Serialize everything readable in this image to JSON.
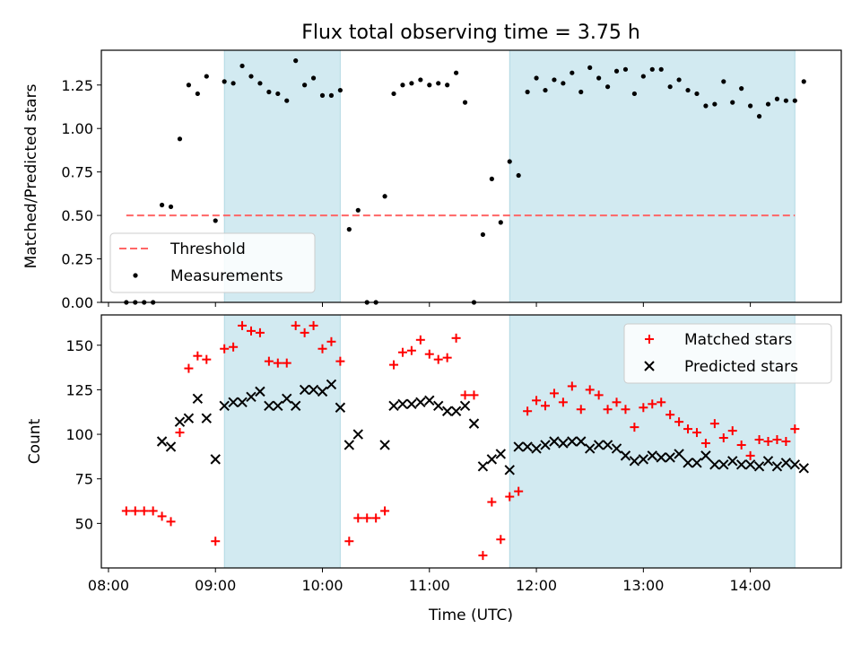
{
  "figure": {
    "title": "Flux total observing time = 3.75 h",
    "xlabel": "Time (UTC)"
  },
  "colors": {
    "shade": "#add8e6",
    "threshold": "#ff6666",
    "matched": "#ff0000",
    "predicted": "#000000",
    "measurement": "#000000"
  },
  "chart_data": [
    {
      "type": "scatter",
      "ylabel": "Matched/Predicted stars",
      "xlim": [
        "07:56",
        "14:51"
      ],
      "ylim": [
        0.0,
        1.45
      ],
      "xticks": [
        "08:00",
        "09:00",
        "10:00",
        "11:00",
        "12:00",
        "13:00",
        "14:00"
      ],
      "yticks": [
        "0.00",
        "0.25",
        "0.50",
        "0.75",
        "1.00",
        "1.25"
      ],
      "legend": {
        "placement": "lower-left",
        "entries": [
          "Threshold",
          "Measurements"
        ]
      },
      "shaded_spans": [
        [
          "09:05",
          "10:10"
        ],
        [
          "11:45",
          "14:25"
        ]
      ],
      "threshold": {
        "name": "Threshold",
        "y": 0.5,
        "x": [
          "08:10",
          "14:25"
        ]
      },
      "series": [
        {
          "name": "Measurements",
          "marker": "dot",
          "points": [
            [
              "08:10",
              0.0
            ],
            [
              "08:15",
              0.0
            ],
            [
              "08:20",
              0.0
            ],
            [
              "08:25",
              0.0
            ],
            [
              "08:30",
              0.56
            ],
            [
              "08:35",
              0.55
            ],
            [
              "08:40",
              0.94
            ],
            [
              "08:45",
              1.25
            ],
            [
              "08:50",
              1.2
            ],
            [
              "08:55",
              1.3
            ],
            [
              "09:00",
              0.47
            ],
            [
              "09:05",
              1.27
            ],
            [
              "09:10",
              1.26
            ],
            [
              "09:15",
              1.36
            ],
            [
              "09:20",
              1.3
            ],
            [
              "09:25",
              1.26
            ],
            [
              "09:30",
              1.21
            ],
            [
              "09:35",
              1.2
            ],
            [
              "09:40",
              1.16
            ],
            [
              "09:45",
              1.39
            ],
            [
              "09:50",
              1.25
            ],
            [
              "09:55",
              1.29
            ],
            [
              "10:00",
              1.19
            ],
            [
              "10:05",
              1.19
            ],
            [
              "10:10",
              1.22
            ],
            [
              "10:15",
              0.42
            ],
            [
              "10:20",
              0.53
            ],
            [
              "10:25",
              0.0
            ],
            [
              "10:30",
              0.0
            ],
            [
              "10:35",
              0.61
            ],
            [
              "10:40",
              1.2
            ],
            [
              "10:45",
              1.25
            ],
            [
              "10:50",
              1.26
            ],
            [
              "10:55",
              1.28
            ],
            [
              "11:00",
              1.25
            ],
            [
              "11:05",
              1.26
            ],
            [
              "11:10",
              1.25
            ],
            [
              "11:15",
              1.32
            ],
            [
              "11:20",
              1.15
            ],
            [
              "11:25",
              0.0
            ],
            [
              "11:30",
              0.39
            ],
            [
              "11:35",
              0.71
            ],
            [
              "11:40",
              0.46
            ],
            [
              "11:45",
              0.81
            ],
            [
              "11:50",
              0.73
            ],
            [
              "11:55",
              1.21
            ],
            [
              "12:00",
              1.29
            ],
            [
              "12:05",
              1.22
            ],
            [
              "12:10",
              1.28
            ],
            [
              "12:15",
              1.26
            ],
            [
              "12:20",
              1.32
            ],
            [
              "12:25",
              1.21
            ],
            [
              "12:30",
              1.35
            ],
            [
              "12:35",
              1.29
            ],
            [
              "12:40",
              1.24
            ],
            [
              "12:45",
              1.33
            ],
            [
              "12:50",
              1.34
            ],
            [
              "12:55",
              1.2
            ],
            [
              "13:00",
              1.3
            ],
            [
              "13:05",
              1.34
            ],
            [
              "13:10",
              1.34
            ],
            [
              "13:15",
              1.24
            ],
            [
              "13:20",
              1.28
            ],
            [
              "13:25",
              1.22
            ],
            [
              "13:30",
              1.2
            ],
            [
              "13:35",
              1.13
            ],
            [
              "13:40",
              1.14
            ],
            [
              "13:45",
              1.27
            ],
            [
              "13:50",
              1.15
            ],
            [
              "13:55",
              1.23
            ],
            [
              "14:00",
              1.13
            ],
            [
              "14:05",
              1.07
            ],
            [
              "14:10",
              1.14
            ],
            [
              "14:15",
              1.17
            ],
            [
              "14:20",
              1.16
            ],
            [
              "14:25",
              1.16
            ],
            [
              "14:30",
              1.27
            ]
          ]
        }
      ]
    },
    {
      "type": "scatter",
      "ylabel": "Count",
      "xlim": [
        "07:56",
        "14:51"
      ],
      "ylim": [
        25,
        167
      ],
      "xticks": [
        "08:00",
        "09:00",
        "10:00",
        "11:00",
        "12:00",
        "13:00",
        "14:00"
      ],
      "yticks": [
        "50",
        "75",
        "100",
        "125",
        "150"
      ],
      "legend": {
        "placement": "upper-right",
        "entries": [
          "Matched stars",
          "Predicted stars"
        ]
      },
      "shaded_spans": [
        [
          "09:05",
          "10:10"
        ],
        [
          "11:45",
          "14:25"
        ]
      ],
      "series": [
        {
          "name": "Matched stars",
          "marker": "plus",
          "points": [
            [
              "08:10",
              57
            ],
            [
              "08:15",
              57
            ],
            [
              "08:20",
              57
            ],
            [
              "08:25",
              57
            ],
            [
              "08:30",
              54
            ],
            [
              "08:35",
              51
            ],
            [
              "08:40",
              101
            ],
            [
              "08:45",
              137
            ],
            [
              "08:50",
              144
            ],
            [
              "08:55",
              142
            ],
            [
              "09:00",
              40
            ],
            [
              "09:05",
              148
            ],
            [
              "09:10",
              149
            ],
            [
              "09:15",
              161
            ],
            [
              "09:20",
              158
            ],
            [
              "09:25",
              157
            ],
            [
              "09:30",
              141
            ],
            [
              "09:35",
              140
            ],
            [
              "09:40",
              140
            ],
            [
              "09:45",
              161
            ],
            [
              "09:50",
              157
            ],
            [
              "09:55",
              161
            ],
            [
              "10:00",
              148
            ],
            [
              "10:05",
              152
            ],
            [
              "10:10",
              141
            ],
            [
              "10:15",
              40
            ],
            [
              "10:20",
              53
            ],
            [
              "10:25",
              53
            ],
            [
              "10:30",
              53
            ],
            [
              "10:35",
              57
            ],
            [
              "10:40",
              139
            ],
            [
              "10:45",
              146
            ],
            [
              "10:50",
              147
            ],
            [
              "10:55",
              153
            ],
            [
              "11:00",
              145
            ],
            [
              "11:05",
              142
            ],
            [
              "11:10",
              143
            ],
            [
              "11:15",
              154
            ],
            [
              "11:20",
              122
            ],
            [
              "11:25",
              122
            ],
            [
              "11:30",
              32
            ],
            [
              "11:35",
              62
            ],
            [
              "11:40",
              41
            ],
            [
              "11:45",
              65
            ],
            [
              "11:50",
              68
            ],
            [
              "11:55",
              113
            ],
            [
              "12:00",
              119
            ],
            [
              "12:05",
              116
            ],
            [
              "12:10",
              123
            ],
            [
              "12:15",
              118
            ],
            [
              "12:20",
              127
            ],
            [
              "12:25",
              114
            ],
            [
              "12:30",
              125
            ],
            [
              "12:35",
              122
            ],
            [
              "12:40",
              114
            ],
            [
              "12:45",
              118
            ],
            [
              "12:50",
              114
            ],
            [
              "12:55",
              104
            ],
            [
              "13:00",
              115
            ],
            [
              "13:05",
              117
            ],
            [
              "13:10",
              118
            ],
            [
              "13:15",
              111
            ],
            [
              "13:20",
              107
            ],
            [
              "13:25",
              103
            ],
            [
              "13:30",
              101
            ],
            [
              "13:35",
              95
            ],
            [
              "13:40",
              106
            ],
            [
              "13:45",
              98
            ],
            [
              "13:50",
              102
            ],
            [
              "13:55",
              94
            ],
            [
              "14:00",
              88
            ],
            [
              "14:05",
              97
            ],
            [
              "14:10",
              96
            ],
            [
              "14:15",
              97
            ],
            [
              "14:20",
              96
            ],
            [
              "14:25",
              103
            ]
          ]
        },
        {
          "name": "Predicted stars",
          "marker": "cross",
          "points": [
            [
              "08:30",
              96
            ],
            [
              "08:35",
              93
            ],
            [
              "08:40",
              107
            ],
            [
              "08:45",
              109
            ],
            [
              "08:50",
              120
            ],
            [
              "08:55",
              109
            ],
            [
              "09:00",
              86
            ],
            [
              "09:05",
              116
            ],
            [
              "09:10",
              118
            ],
            [
              "09:15",
              118
            ],
            [
              "09:20",
              121
            ],
            [
              "09:25",
              124
            ],
            [
              "09:30",
              116
            ],
            [
              "09:35",
              116
            ],
            [
              "09:40",
              120
            ],
            [
              "09:45",
              116
            ],
            [
              "09:50",
              125
            ],
            [
              "09:55",
              125
            ],
            [
              "10:00",
              124
            ],
            [
              "10:05",
              128
            ],
            [
              "10:10",
              115
            ],
            [
              "10:15",
              94
            ],
            [
              "10:20",
              100
            ],
            [
              "10:35",
              94
            ],
            [
              "10:40",
              116
            ],
            [
              "10:45",
              117
            ],
            [
              "10:50",
              117
            ],
            [
              "10:55",
              118
            ],
            [
              "11:00",
              119
            ],
            [
              "11:05",
              116
            ],
            [
              "11:10",
              113
            ],
            [
              "11:15",
              113
            ],
            [
              "11:20",
              116
            ],
            [
              "11:25",
              106
            ],
            [
              "11:30",
              82
            ],
            [
              "11:35",
              86
            ],
            [
              "11:40",
              89
            ],
            [
              "11:45",
              80
            ],
            [
              "11:50",
              93
            ],
            [
              "11:55",
              93
            ],
            [
              "12:00",
              92
            ],
            [
              "12:05",
              94
            ],
            [
              "12:10",
              96
            ],
            [
              "12:15",
              95
            ],
            [
              "12:20",
              96
            ],
            [
              "12:25",
              96
            ],
            [
              "12:30",
              92
            ],
            [
              "12:35",
              94
            ],
            [
              "12:40",
              94
            ],
            [
              "12:45",
              92
            ],
            [
              "12:50",
              88
            ],
            [
              "12:55",
              85
            ],
            [
              "13:00",
              86
            ],
            [
              "13:05",
              88
            ],
            [
              "13:10",
              87
            ],
            [
              "13:15",
              87
            ],
            [
              "13:20",
              89
            ],
            [
              "13:25",
              84
            ],
            [
              "13:30",
              84
            ],
            [
              "13:35",
              88
            ],
            [
              "13:40",
              83
            ],
            [
              "13:45",
              83
            ],
            [
              "13:50",
              85
            ],
            [
              "13:55",
              83
            ],
            [
              "14:00",
              83
            ],
            [
              "14:05",
              82
            ],
            [
              "14:10",
              85
            ],
            [
              "14:15",
              82
            ],
            [
              "14:20",
              84
            ],
            [
              "14:25",
              83
            ],
            [
              "14:30",
              81
            ]
          ]
        }
      ]
    }
  ]
}
